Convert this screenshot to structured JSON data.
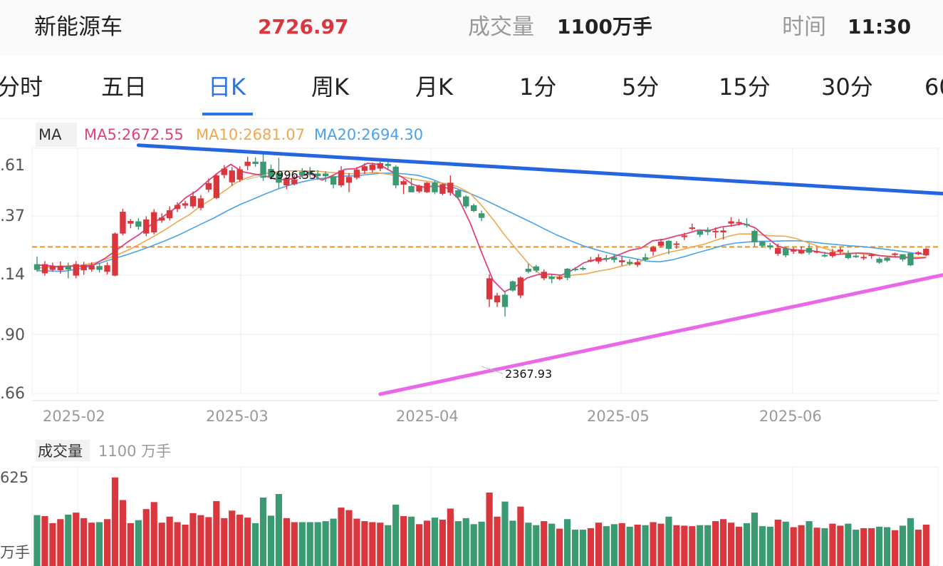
{
  "header": {
    "name": "新能源车",
    "price": "2726.97",
    "volume_label": "成交量",
    "volume_value": "1100万手",
    "time_label": "时间",
    "time_value": "11:30"
  },
  "tabs": [
    {
      "label": "分时"
    },
    {
      "label": "五日"
    },
    {
      "label": "日K",
      "active": true
    },
    {
      "label": "周K"
    },
    {
      "label": "月K"
    },
    {
      "label": "1分"
    },
    {
      "label": "5分"
    },
    {
      "label": "15分"
    },
    {
      "label": "30分"
    },
    {
      "label": "60"
    }
  ],
  "ma_legend": {
    "tag": "MA",
    "ma5": "MA5:2672.55",
    "ma10": "MA10:2681.07",
    "ma20": "MA20:2694.30"
  },
  "price_axis": {
    "labels": [
      ".61",
      ".37",
      ".14",
      ".90",
      ".66"
    ]
  },
  "date_axis": [
    "2025-02",
    "2025-03",
    "2025-04",
    "2025-05",
    "2025-06"
  ],
  "annotations": {
    "high": "2996.35",
    "low": "2367.93"
  },
  "volume_legend": {
    "tag": "成交量",
    "value": "1100 万手"
  },
  "volume_axis": {
    "top": "625",
    "unit": "万手"
  },
  "colors": {
    "up": "#d9363e",
    "down": "#3a9a72",
    "ma5": "#e0407e",
    "ma10": "#f0a850",
    "ma20": "#4aa3e8",
    "resistance": "#2566e0",
    "support": "#e868e8",
    "dashed": "#e8922e",
    "accent": "#2a74e5"
  },
  "chart_data": {
    "type": "candlestick",
    "ylim": [
      2325,
      3000
    ],
    "reference_level": 2726.97,
    "x_ticks": [
      "2025-02",
      "2025-03",
      "2025-04",
      "2025-05",
      "2025-06"
    ],
    "candles": [
      [
        2682,
        2667,
        2702,
        2662
      ],
      [
        2658,
        2682,
        2690,
        2652
      ],
      [
        2667,
        2677,
        2686,
        2662
      ],
      [
        2666,
        2678,
        2689,
        2657
      ],
      [
        2677,
        2668,
        2686,
        2645
      ],
      [
        2652,
        2682,
        2690,
        2645
      ],
      [
        2666,
        2680,
        2688,
        2654
      ],
      [
        2668,
        2678,
        2687,
        2662
      ],
      [
        2677,
        2667,
        2686,
        2660
      ],
      [
        2662,
        2679,
        2687,
        2655
      ],
      [
        2652,
        2762,
        2765,
        2650
      ],
      [
        2762,
        2819,
        2827,
        2757
      ],
      [
        2788,
        2795,
        2800,
        2776
      ],
      [
        2794,
        2780,
        2802,
        2772
      ],
      [
        2762,
        2799,
        2807,
        2755
      ],
      [
        2765,
        2818,
        2826,
        2760
      ],
      [
        2796,
        2804,
        2815,
        2790
      ],
      [
        2802,
        2823,
        2833,
        2796
      ],
      [
        2826,
        2837,
        2844,
        2818
      ],
      [
        2835,
        2841,
        2848,
        2827
      ],
      [
        2833,
        2860,
        2872,
        2828
      ],
      [
        2829,
        2854,
        2863,
        2823
      ],
      [
        2877,
        2894,
        2906,
        2870
      ],
      [
        2855,
        2914,
        2920,
        2852
      ],
      [
        2915,
        2932,
        2941,
        2907
      ],
      [
        2896,
        2927,
        2936,
        2887
      ],
      [
        2903,
        2930,
        2938,
        2897
      ],
      [
        2939,
        2950,
        2963,
        2928
      ],
      [
        2950,
        2944,
        2961,
        2937
      ],
      [
        2950,
        2908,
        2975,
        2900
      ],
      [
        2931,
        2910,
        2942,
        2903
      ],
      [
        2921,
        2895,
        2960,
        2878
      ],
      [
        2888,
        2907,
        2912,
        2878
      ],
      [
        2891,
        2904,
        2914,
        2888
      ],
      [
        2924,
        2914,
        2933,
        2907
      ],
      [
        2924,
        2917,
        2936,
        2910
      ],
      [
        2919,
        2912,
        2928,
        2902
      ],
      [
        2919,
        2912,
        2925,
        2897
      ],
      [
        2912,
        2890,
        2913,
        2880
      ],
      [
        2888,
        2927,
        2938,
        2883
      ],
      [
        2895,
        2910,
        2920,
        2870
      ],
      [
        2908,
        2929,
        2936,
        2903
      ],
      [
        2926,
        2938,
        2946,
        2918
      ],
      [
        2928,
        2942,
        2948,
        2922
      ],
      [
        2932,
        2946,
        2950,
        2925
      ],
      [
        2944,
        2939,
        2950,
        2930
      ],
      [
        2937,
        2888,
        2941,
        2880
      ],
      [
        2890,
        2899,
        2903,
        2865
      ],
      [
        2886,
        2870,
        2907,
        2870
      ],
      [
        2872,
        2887,
        2890,
        2868
      ],
      [
        2870,
        2895,
        2897,
        2868
      ],
      [
        2895,
        2870,
        2900,
        2865
      ],
      [
        2866,
        2891,
        2893,
        2862
      ],
      [
        2869,
        2895,
        2914,
        2861
      ],
      [
        2875,
        2857,
        2878,
        2850
      ],
      [
        2859,
        2833,
        2862,
        2828
      ],
      [
        2836,
        2821,
        2840,
        2818
      ],
      [
        2815,
        2803,
        2822,
        2795
      ],
      [
        2590,
        2645,
        2655,
        2570
      ],
      [
        2582,
        2600,
        2607,
        2570
      ],
      [
        2602,
        2570,
        2612,
        2545
      ],
      [
        2637,
        2613,
        2639,
        2610
      ],
      [
        2600,
        2647,
        2650,
        2593
      ],
      [
        2670,
        2662,
        2683,
        2658
      ],
      [
        2676,
        2665,
        2680,
        2660
      ],
      [
        2645,
        2662,
        2668,
        2640
      ],
      [
        2649,
        2643,
        2655,
        2632
      ],
      [
        2643,
        2648,
        2653,
        2640
      ],
      [
        2670,
        2646,
        2672,
        2640
      ],
      [
        2670,
        2668,
        2674,
        2663
      ],
      [
        2672,
        2670,
        2676,
        2665
      ],
      [
        2692,
        2693,
        2701,
        2687
      ],
      [
        2689,
        2700,
        2708,
        2683
      ],
      [
        2698,
        2695,
        2706,
        2688
      ],
      [
        2700,
        2693,
        2708,
        2686
      ],
      [
        2687,
        2692,
        2702,
        2678
      ],
      [
        2688,
        2683,
        2695,
        2678
      ],
      [
        2680,
        2687,
        2696,
        2675
      ],
      [
        2700,
        2693,
        2710,
        2690
      ],
      [
        2715,
        2726,
        2730,
        2704
      ],
      [
        2730,
        2741,
        2748,
        2725
      ],
      [
        2743,
        2722,
        2745,
        2708
      ],
      [
        2736,
        2736,
        2742,
        2722
      ],
      [
        2753,
        2757,
        2764,
        2745
      ],
      [
        2776,
        2778,
        2788,
        2770
      ],
      [
        2769,
        2759,
        2773,
        2753
      ],
      [
        2772,
        2766,
        2778,
        2758
      ],
      [
        2768,
        2769,
        2778,
        2750
      ],
      [
        2765,
        2770,
        2778,
        2746
      ],
      [
        2788,
        2794,
        2805,
        2780
      ],
      [
        2791,
        2792,
        2800,
        2783
      ],
      [
        2787,
        2785,
        2802,
        2778
      ],
      [
        2769,
        2739,
        2773,
        2728
      ],
      [
        2741,
        2730,
        2743,
        2725
      ],
      [
        2731,
        2726,
        2737,
        2720
      ],
      [
        2709,
        2724,
        2735,
        2704
      ],
      [
        2723,
        2705,
        2727,
        2700
      ],
      [
        2715,
        2719,
        2725,
        2709
      ],
      [
        2710,
        2719,
        2728,
        2708
      ],
      [
        2724,
        2712,
        2735,
        2707
      ],
      [
        2715,
        2716,
        2725,
        2710
      ],
      [
        2706,
        2705,
        2714,
        2700
      ],
      [
        2703,
        2714,
        2722,
        2699
      ],
      [
        2715,
        2720,
        2726,
        2707
      ],
      [
        2709,
        2698,
        2718,
        2695
      ],
      [
        2704,
        2703,
        2709,
        2698
      ],
      [
        2699,
        2701,
        2707,
        2693
      ],
      [
        2705,
        2707,
        2710,
        2696
      ],
      [
        2696,
        2686,
        2700,
        2683
      ],
      [
        2699,
        2691,
        2703,
        2687
      ],
      [
        2706,
        2710,
        2712,
        2702
      ],
      [
        2708,
        2694,
        2708,
        2689
      ],
      [
        2711,
        2679,
        2711,
        2677
      ],
      [
        2708,
        2713,
        2716,
        2705
      ],
      [
        2705,
        2722,
        2724,
        2703
      ]
    ],
    "ma5": [
      2680,
      2678,
      2675,
      2677,
      2676,
      2681,
      2698,
      2719,
      2741,
      2760,
      2785,
      2805,
      2826,
      2855,
      2874,
      2900,
      2924,
      2943,
      2924,
      2918,
      2913,
      2903,
      2903,
      2911,
      2918,
      2902,
      2915,
      2930,
      2932,
      2946,
      2943,
      2926,
      2910,
      2890,
      2883,
      2887,
      2881,
      2852,
      2790,
      2713,
      2640,
      2610,
      2624,
      2646,
      2655,
      2656,
      2653,
      2667,
      2686,
      2694,
      2695,
      2706,
      2718,
      2724,
      2743,
      2747,
      2755,
      2762,
      2771,
      2770,
      2779,
      2783,
      2788,
      2777,
      2752,
      2729,
      2721,
      2718,
      2717,
      2712,
      2707,
      2709,
      2711,
      2710,
      2704,
      2701,
      2700,
      2697,
      2699
    ],
    "ma10": [
      2672,
      2674,
      2676,
      2678,
      2680,
      2686,
      2696,
      2708,
      2722,
      2738,
      2755,
      2773,
      2793,
      2811,
      2834,
      2853,
      2873,
      2895,
      2908,
      2918,
      2921,
      2926,
      2926,
      2926,
      2925,
      2922,
      2920,
      2918,
      2920,
      2922,
      2917,
      2912,
      2905,
      2900,
      2896,
      2893,
      2884,
      2868,
      2836,
      2798,
      2757,
      2720,
      2684,
      2656,
      2648,
      2650,
      2654,
      2657,
      2664,
      2669,
      2677,
      2684,
      2694,
      2704,
      2713,
      2719,
      2727,
      2734,
      2744,
      2754,
      2761,
      2761,
      2758,
      2756,
      2755,
      2748,
      2737,
      2726,
      2717,
      2711,
      2711,
      2707,
      2704,
      2703,
      2701,
      2700,
      2700
    ],
    "ma20": [
      2665,
      2664,
      2663,
      2668,
      2675,
      2685,
      2696,
      2706,
      2717,
      2729,
      2742,
      2756,
      2772,
      2788,
      2804,
      2822,
      2838,
      2852,
      2866,
      2879,
      2890,
      2898,
      2905,
      2908,
      2912,
      2913,
      2916,
      2920,
      2920,
      2918,
      2914,
      2905,
      2892,
      2880,
      2868,
      2854,
      2838,
      2822,
      2806,
      2790,
      2773,
      2757,
      2743,
      2730,
      2720,
      2711,
      2703,
      2697,
      2690,
      2688,
      2693,
      2702,
      2712,
      2721,
      2731,
      2737,
      2740,
      2742,
      2742,
      2743,
      2743,
      2740,
      2736,
      2733,
      2730,
      2728,
      2724,
      2720,
      2716,
      2711,
      2707
    ],
    "trendlines": [
      {
        "name": "resistance",
        "from": [
          13,
          2993
        ],
        "to": [
          119,
          2863
        ]
      },
      {
        "name": "support",
        "from": [
          44,
          2342
        ],
        "to": [
          119,
          2666
        ]
      }
    ]
  }
}
